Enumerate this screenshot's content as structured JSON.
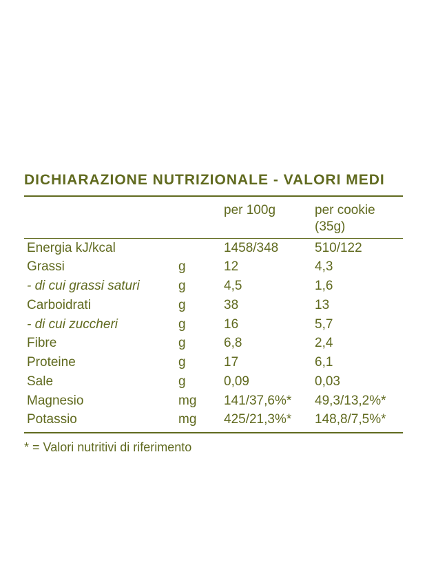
{
  "colors": {
    "text": "#606a1f",
    "background": "#ffffff",
    "rule": "#606a1f"
  },
  "typography": {
    "family": "Comic Sans MS / handwritten",
    "title_size_pt": 16,
    "body_size_pt": 14
  },
  "table": {
    "title": "DICHIARAZIONE NUTRIZIONALE - VALORI MEDI",
    "columns": {
      "name": "",
      "unit": "",
      "per100g": "per 100g",
      "perCookie": "per cookie (35g)"
    },
    "rows": [
      {
        "name": "Energia kJ/kcal",
        "unit": "",
        "v1": "1458/348",
        "v2": "510/122",
        "sub": false
      },
      {
        "name": "Grassi",
        "unit": "g",
        "v1": "12",
        "v2": "4,3",
        "sub": false
      },
      {
        "name": "- di cui grassi saturi",
        "unit": "g",
        "v1": "4,5",
        "v2": "1,6",
        "sub": true
      },
      {
        "name": "Carboidrati",
        "unit": "g",
        "v1": "38",
        "v2": "13",
        "sub": false
      },
      {
        "name": "- di cui zuccheri",
        "unit": "g",
        "v1": "16",
        "v2": "5,7",
        "sub": true
      },
      {
        "name": "Fibre",
        "unit": "g",
        "v1": "6,8",
        "v2": "2,4",
        "sub": false
      },
      {
        "name": "Proteine",
        "unit": "g",
        "v1": "17",
        "v2": "6,1",
        "sub": false
      },
      {
        "name": "Sale",
        "unit": "g",
        "v1": "0,09",
        "v2": "0,03",
        "sub": false
      },
      {
        "name": "Magnesio",
        "unit": "mg",
        "v1": "141/37,6%*",
        "v2": "49,3/13,2%*",
        "sub": false
      },
      {
        "name": "Potassio",
        "unit": "mg",
        "v1": "425/21,3%*",
        "v2": "148,8/7,5%*",
        "sub": false
      }
    ],
    "footnote": "* = Valori nutritivi di riferimento"
  }
}
